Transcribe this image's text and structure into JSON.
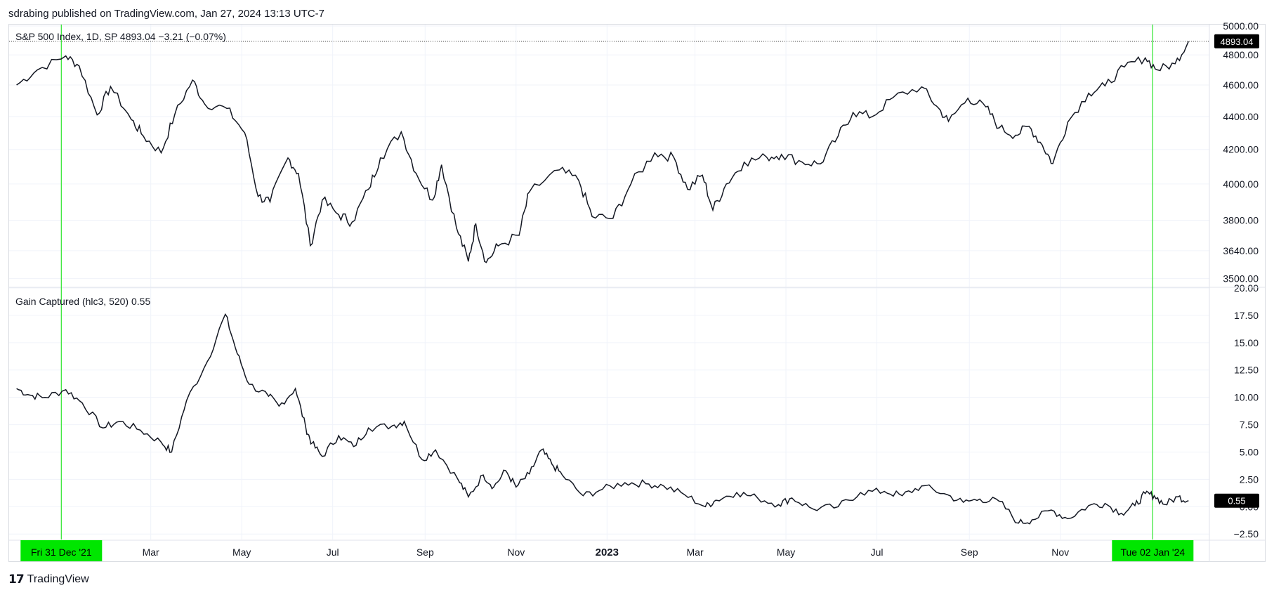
{
  "header": {
    "published_text": "sdrabing published on TradingView.com, Jan 27, 2024 13:13 UTC-7"
  },
  "footer": {
    "brand": "TradingView",
    "brand_icon": "tradingview-logo-icon"
  },
  "colors": {
    "line": "#131722",
    "grid": "#f0f3fa",
    "highlight": "#00e600",
    "highlight_line": "#2ee62e",
    "price_label_bg": "#000000",
    "price_label_text": "#ffffff"
  },
  "chart_data": [
    {
      "type": "line",
      "name": "price-pane",
      "legend": "S&P 500 Index, 1D, SP  4893.04  −3.21 (−0.07%)",
      "last_value_label": "4893.04",
      "last_value": 4893.04,
      "ylim": [
        3460,
        5010
      ],
      "y_ticks": [
        5000,
        4800,
        4600,
        4400,
        4200,
        4000,
        3800,
        3640,
        3500
      ],
      "y_tick_labels": [
        "5000.00",
        "4800.00",
        "4600.00",
        "4400.00",
        "4200.00",
        "4000.00",
        "3800.00",
        "3640.00",
        "3500.00"
      ],
      "log_scale": true,
      "grid": true,
      "x": [
        "2021-12-01",
        "2021-12-15",
        "2022-01-03",
        "2022-01-12",
        "2022-01-24",
        "2022-02-02",
        "2022-02-16",
        "2022-02-24",
        "2022-03-08",
        "2022-03-17",
        "2022-03-29",
        "2022-04-06",
        "2022-04-21",
        "2022-05-03",
        "2022-05-12",
        "2022-05-20",
        "2022-06-01",
        "2022-06-08",
        "2022-06-16",
        "2022-06-24",
        "2022-07-05",
        "2022-07-14",
        "2022-07-25",
        "2022-08-02",
        "2022-08-16",
        "2022-08-26",
        "2022-09-06",
        "2022-09-12",
        "2022-09-22",
        "2022-09-30",
        "2022-10-05",
        "2022-10-12",
        "2022-10-20",
        "2022-11-03",
        "2022-11-10",
        "2022-11-30",
        "2022-12-13",
        "2022-12-22",
        "2023-01-05",
        "2023-01-17",
        "2023-02-02",
        "2023-02-15",
        "2023-02-24",
        "2023-03-06",
        "2023-03-13",
        "2023-03-22",
        "2023-04-03",
        "2023-04-18",
        "2023-04-28",
        "2023-05-12",
        "2023-05-24",
        "2023-06-05",
        "2023-06-15",
        "2023-06-28",
        "2023-07-12",
        "2023-07-31",
        "2023-08-10",
        "2023-08-18",
        "2023-08-31",
        "2023-09-12",
        "2023-09-21",
        "2023-10-02",
        "2023-10-11",
        "2023-10-20",
        "2023-10-27",
        "2023-11-06",
        "2023-11-20",
        "2023-12-01",
        "2023-12-14",
        "2023-12-28",
        "2024-01-05",
        "2024-01-17",
        "2024-01-26"
      ],
      "values": [
        4600,
        4700,
        4793,
        4725,
        4410,
        4590,
        4380,
        4280,
        4180,
        4410,
        4632,
        4480,
        4450,
        4300,
        3930,
        3900,
        4150,
        4060,
        3666,
        3910,
        3830,
        3790,
        3970,
        4150,
        4305,
        4060,
        3910,
        4110,
        3760,
        3585,
        3780,
        3580,
        3665,
        3720,
        3956,
        4080,
        4020,
        3820,
        3810,
        4000,
        4180,
        4150,
        3970,
        4050,
        3855,
        4000,
        4125,
        4155,
        4170,
        4125,
        4115,
        4280,
        4425,
        4400,
        4520,
        4588,
        4465,
        4370,
        4515,
        4460,
        4330,
        4285,
        4340,
        4225,
        4117,
        4365,
        4547,
        4594,
        4719,
        4780,
        4700,
        4740,
        4893
      ],
      "ylabel": ""
    },
    {
      "type": "line",
      "name": "indicator-pane",
      "legend": "Gain Captured (hlc3, 520)  0.55",
      "last_value_label": "0.55",
      "last_value": 0.55,
      "ylim": [
        -3,
        20
      ],
      "y_ticks": [
        20,
        17.5,
        15,
        12.5,
        10,
        7.5,
        5,
        2.5,
        0,
        -2.5
      ],
      "y_tick_labels": [
        "20.00",
        "17.50",
        "15.00",
        "12.50",
        "10.00",
        "7.50",
        "5.00",
        "2.50",
        "0.00",
        "−2.50"
      ],
      "grid": true,
      "x": [
        "2021-12-01",
        "2021-12-10",
        "2021-12-20",
        "2022-01-03",
        "2022-01-14",
        "2022-01-28",
        "2022-02-08",
        "2022-02-22",
        "2022-03-08",
        "2022-03-15",
        "2022-03-25",
        "2022-04-08",
        "2022-04-20",
        "2022-04-28",
        "2022-05-06",
        "2022-05-19",
        "2022-05-26",
        "2022-06-06",
        "2022-06-13",
        "2022-06-17",
        "2022-06-24",
        "2022-07-05",
        "2022-07-15",
        "2022-07-25",
        "2022-08-10",
        "2022-08-18",
        "2022-08-30",
        "2022-09-08",
        "2022-09-23",
        "2022-09-30",
        "2022-10-10",
        "2022-10-17",
        "2022-10-25",
        "2022-11-01",
        "2022-11-10",
        "2022-11-18",
        "2022-11-25",
        "2022-12-02",
        "2022-12-16",
        "2022-12-29",
        "2023-01-13",
        "2023-01-27",
        "2023-02-08",
        "2023-02-22",
        "2023-03-08",
        "2023-03-15",
        "2023-03-29",
        "2023-04-12",
        "2023-04-26",
        "2023-05-05",
        "2023-05-19",
        "2023-06-05",
        "2023-06-20",
        "2023-07-06",
        "2023-07-18",
        "2023-07-31",
        "2023-08-15",
        "2023-08-28",
        "2023-09-08",
        "2023-09-21",
        "2023-10-04",
        "2023-10-13",
        "2023-10-26",
        "2023-11-06",
        "2023-11-20",
        "2023-12-01",
        "2023-12-12",
        "2023-12-21",
        "2023-12-28",
        "2024-01-03",
        "2024-01-10",
        "2024-01-19",
        "2024-01-26"
      ],
      "values": [
        10.8,
        10.2,
        10.0,
        10.7,
        9.5,
        7.2,
        7.8,
        7.0,
        5.9,
        5.0,
        9.7,
        13.3,
        17.6,
        14.0,
        11.2,
        10.1,
        9.2,
        10.8,
        7.2,
        5.8,
        4.6,
        6.5,
        5.5,
        7.2,
        7.4,
        7.8,
        4.3,
        5.2,
        2.5,
        0.9,
        2.9,
        1.8,
        3.3,
        1.8,
        3.0,
        5.2,
        3.9,
        2.9,
        1.0,
        1.6,
        2.2,
        2.1,
        1.9,
        1.1,
        0.0,
        0.6,
        1.3,
        0.8,
        0.2,
        0.8,
        -0.2,
        0.0,
        1.3,
        1.4,
        1.0,
        1.9,
        1.2,
        0.4,
        0.7,
        0.5,
        -1.5,
        -1.2,
        -0.3,
        -1.1,
        0.1,
        0.3,
        -0.6,
        0.1,
        1.2,
        1.0,
        0.2,
        0.9,
        0.55
      ],
      "ylabel": ""
    }
  ],
  "x_axis": {
    "labels": [
      {
        "text": "Mar",
        "date": "2022-03-01",
        "bold": false
      },
      {
        "text": "May",
        "date": "2022-05-01",
        "bold": false
      },
      {
        "text": "Jul",
        "date": "2022-07-01",
        "bold": false
      },
      {
        "text": "Sep",
        "date": "2022-09-01",
        "bold": false
      },
      {
        "text": "Nov",
        "date": "2022-11-01",
        "bold": false
      },
      {
        "text": "2023",
        "date": "2023-01-01",
        "bold": true
      },
      {
        "text": "Mar",
        "date": "2023-03-01",
        "bold": false
      },
      {
        "text": "May",
        "date": "2023-05-01",
        "bold": false
      },
      {
        "text": "Jul",
        "date": "2023-07-01",
        "bold": false
      },
      {
        "text": "Sep",
        "date": "2023-09-01",
        "bold": false
      },
      {
        "text": "Nov",
        "date": "2023-11-01",
        "bold": false
      }
    ],
    "markers": [
      {
        "text": "Fri 31 Dec '21",
        "date": "2021-12-31"
      },
      {
        "text": "Tue 02 Jan '24",
        "date": "2024-01-02"
      }
    ],
    "start_date": "2021-11-26",
    "end_date": "2024-02-09"
  }
}
